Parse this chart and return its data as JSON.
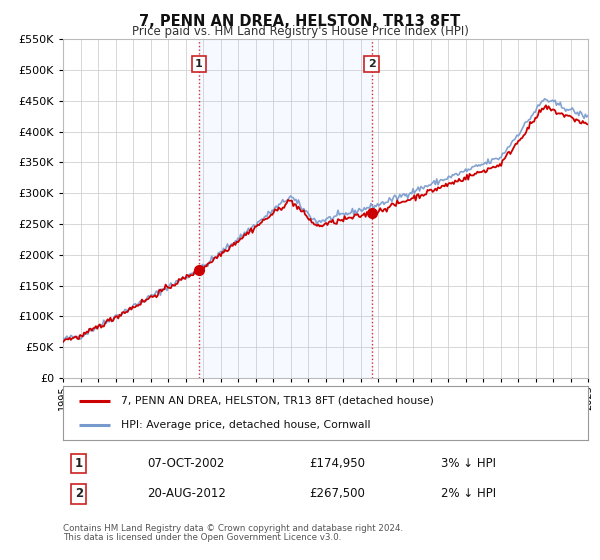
{
  "title": "7, PENN AN DREA, HELSTON, TR13 8FT",
  "subtitle": "Price paid vs. HM Land Registry's House Price Index (HPI)",
  "legend_line1": "7, PENN AN DREA, HELSTON, TR13 8FT (detached house)",
  "legend_line2": "HPI: Average price, detached house, Cornwall",
  "sale1_label": "1",
  "sale1_date": "07-OCT-2002",
  "sale1_price": "£174,950",
  "sale1_hpi": "3% ↓ HPI",
  "sale1_year": 2002.77,
  "sale1_value": 174950,
  "sale2_label": "2",
  "sale2_date": "20-AUG-2012",
  "sale2_price": "£267,500",
  "sale2_hpi": "2% ↓ HPI",
  "sale2_year": 2012.63,
  "sale2_value": 267500,
  "footer_line1": "Contains HM Land Registry data © Crown copyright and database right 2024.",
  "footer_line2": "This data is licensed under the Open Government Licence v3.0.",
  "property_color": "#cc0000",
  "hpi_color": "#7799cc",
  "fig_bg_color": "#ffffff",
  "plot_bg_color": "#ffffff",
  "grid_color": "#cccccc",
  "ylim_min": 0,
  "ylim_max": 550000,
  "xmin": 1995,
  "xmax": 2025
}
